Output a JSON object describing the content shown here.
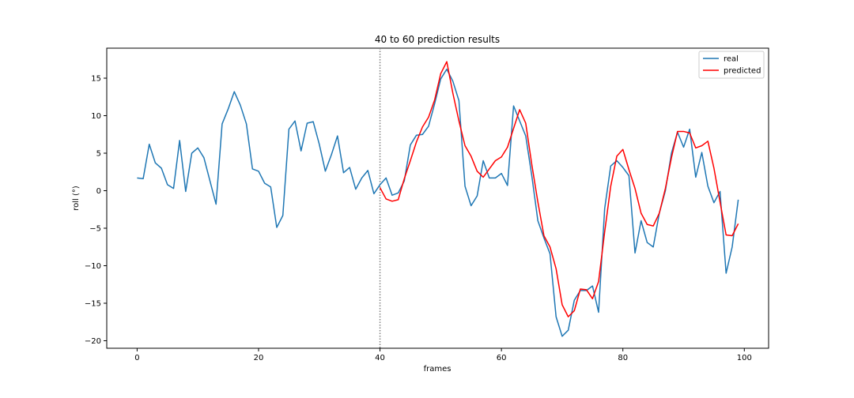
{
  "chart_data": {
    "type": "line",
    "title": "40 to 60 prediction results",
    "xlabel": "frames",
    "ylabel": "roll (°)",
    "xlim": [
      -5,
      104
    ],
    "ylim": [
      -21,
      19
    ],
    "xticks": [
      0,
      20,
      40,
      60,
      80,
      100
    ],
    "yticks": [
      -20,
      -15,
      -10,
      -5,
      0,
      5,
      10,
      15
    ],
    "grid": false,
    "legend": "top-right",
    "vline": {
      "x": 40,
      "style": "dotted",
      "color": "#808080"
    },
    "series": [
      {
        "name": "real",
        "color": "#1f77b4",
        "x": [
          0,
          1,
          2,
          3,
          4,
          5,
          6,
          7,
          8,
          9,
          10,
          11,
          12,
          13,
          14,
          15,
          16,
          17,
          18,
          19,
          20,
          21,
          22,
          23,
          24,
          25,
          26,
          27,
          28,
          29,
          30,
          31,
          32,
          33,
          34,
          35,
          36,
          37,
          38,
          39,
          40,
          41,
          42,
          43,
          44,
          45,
          46,
          47,
          48,
          49,
          50,
          51,
          52,
          53,
          54,
          55,
          56,
          57,
          58,
          59,
          60,
          61,
          62,
          63,
          64,
          65,
          66,
          67,
          68,
          69,
          70,
          71,
          72,
          73,
          74,
          75,
          76,
          77,
          78,
          79,
          80,
          81,
          82,
          83,
          84,
          85,
          86,
          87,
          88,
          89,
          90,
          91,
          92,
          93,
          94,
          95,
          96,
          97,
          98,
          99
        ],
        "y": [
          1.7,
          1.6,
          6.2,
          3.7,
          3.0,
          0.8,
          0.3,
          6.7,
          -0.1,
          5.0,
          5.7,
          4.4,
          1.3,
          -1.8,
          8.9,
          10.9,
          13.2,
          11.4,
          8.9,
          2.9,
          2.6,
          1.0,
          0.5,
          -4.9,
          -3.3,
          8.2,
          9.3,
          5.3,
          9.0,
          9.2,
          6.2,
          2.6,
          4.8,
          7.3,
          2.4,
          3.1,
          0.2,
          1.7,
          2.7,
          -0.4,
          0.8,
          1.7,
          -0.6,
          -0.3,
          1.3,
          6.1,
          7.4,
          7.5,
          8.6,
          11.6,
          14.9,
          16.2,
          14.6,
          12.0,
          0.6,
          -2.0,
          -0.7,
          4.0,
          1.7,
          1.7,
          2.3,
          0.7,
          11.3,
          9.3,
          7.3,
          2.0,
          -4.0,
          -6.3,
          -8.4,
          -16.8,
          -19.4,
          -18.6,
          -14.6,
          -13.3,
          -13.3,
          -12.7,
          -16.2,
          -2.4,
          3.3,
          4.0,
          3.1,
          2.0,
          -8.3,
          -4.0,
          -6.9,
          -7.5,
          -3.0,
          0.0,
          5.0,
          7.8,
          5.8,
          8.2,
          1.8,
          5.1,
          0.6,
          -1.6,
          -0.1,
          -11.0,
          -7.5,
          -1.2
        ]
      },
      {
        "name": "predicted",
        "color": "#ff0000",
        "x": [
          40,
          41,
          42,
          43,
          44,
          45,
          46,
          47,
          48,
          49,
          50,
          51,
          52,
          53,
          54,
          55,
          56,
          57,
          58,
          59,
          60,
          61,
          62,
          63,
          64,
          65,
          66,
          67,
          68,
          69,
          70,
          71,
          72,
          73,
          74,
          75,
          76,
          77,
          78,
          79,
          80,
          81,
          82,
          83,
          84,
          85,
          86,
          87,
          88,
          89,
          90,
          91,
          92,
          93,
          94,
          95,
          96,
          97,
          98,
          99
        ],
        "y": [
          0.4,
          -1.1,
          -1.4,
          -1.2,
          1.6,
          4.0,
          6.5,
          8.5,
          9.8,
          12.1,
          15.6,
          17.2,
          13.0,
          9.3,
          6.0,
          4.6,
          2.6,
          1.8,
          2.9,
          4.0,
          4.5,
          5.8,
          8.3,
          10.8,
          9.0,
          3.5,
          -1.5,
          -6.0,
          -7.5,
          -10.4,
          -15.2,
          -16.8,
          -16.0,
          -13.1,
          -13.2,
          -14.4,
          -12.1,
          -5.5,
          0.6,
          4.6,
          5.5,
          2.8,
          0.3,
          -3.0,
          -4.5,
          -4.7,
          -3.0,
          0.3,
          4.4,
          7.9,
          7.9,
          7.7,
          5.7,
          6.0,
          6.6,
          3.0,
          -1.5,
          -5.9,
          -6.0,
          -4.4
        ]
      }
    ]
  }
}
